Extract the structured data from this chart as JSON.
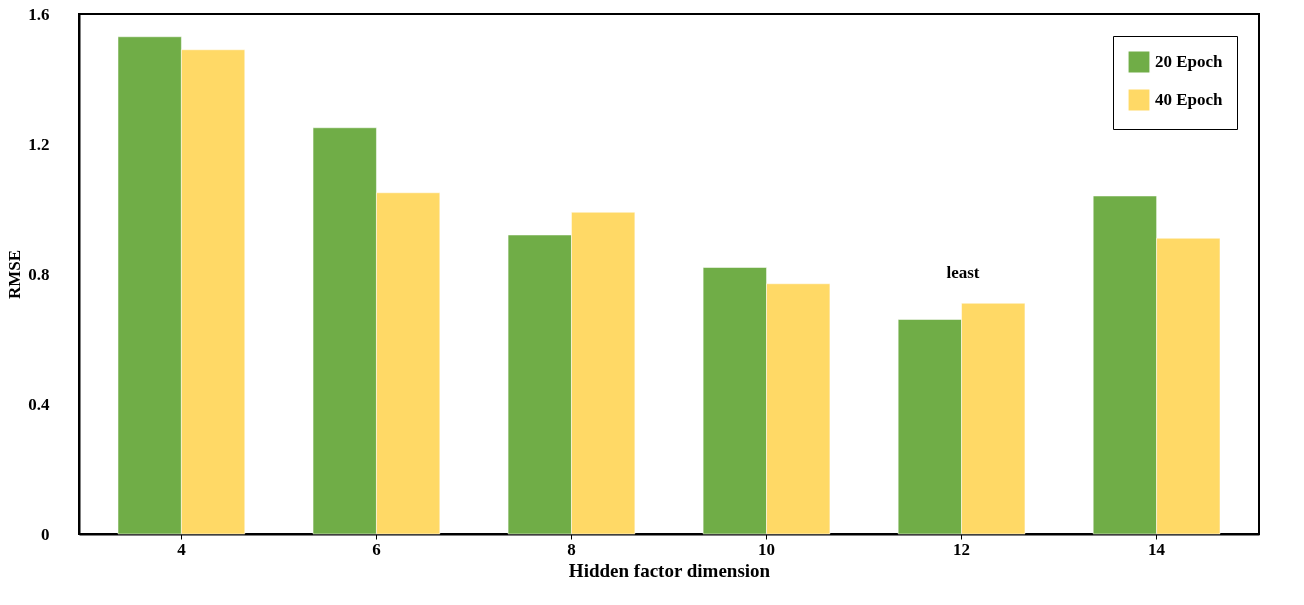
{
  "chart_data": {
    "type": "bar",
    "xlabel": "Hidden factor dimension",
    "ylabel": "RMSE",
    "categories": [
      "4",
      "6",
      "8",
      "10",
      "12",
      "14"
    ],
    "series": [
      {
        "name": "20 Epoch",
        "color": "#70ad47",
        "values": [
          1.53,
          1.25,
          0.92,
          0.82,
          0.66,
          1.04
        ]
      },
      {
        "name": "40 Epoch",
        "color": "#ffd966",
        "values": [
          1.49,
          1.05,
          0.99,
          0.77,
          0.71,
          0.91
        ]
      }
    ],
    "ylim": [
      0,
      1.6
    ],
    "yticks": [
      0,
      0.4,
      0.8,
      1.2,
      1.6
    ],
    "grid": false,
    "legend": "top right",
    "annotations": [
      "least"
    ]
  }
}
